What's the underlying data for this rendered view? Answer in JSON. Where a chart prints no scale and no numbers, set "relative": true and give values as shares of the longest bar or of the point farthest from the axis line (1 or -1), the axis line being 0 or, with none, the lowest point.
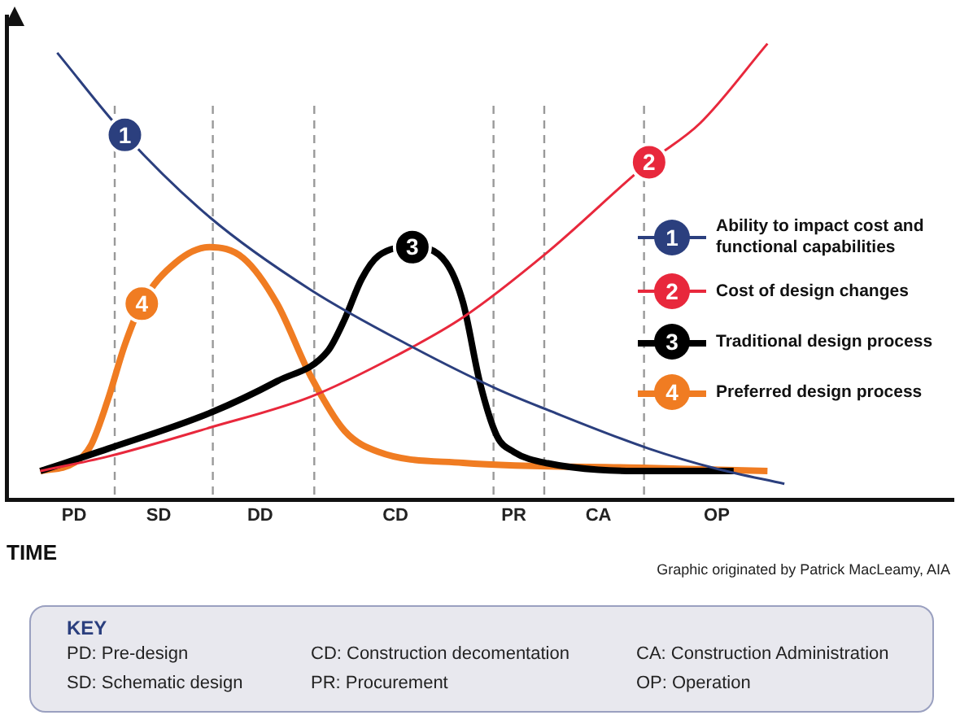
{
  "chart_data": {
    "type": "line",
    "relative": true,
    "xlabel": "TIME",
    "categories": [
      null,
      null,
      null,
      null,
      "PD",
      null,
      null,
      null,
      null,
      "SD",
      null,
      null,
      null,
      null,
      null,
      "DD",
      null,
      null,
      null,
      null,
      null,
      null,
      null,
      "CD",
      null,
      null,
      null,
      null,
      null,
      null,
      "PR",
      null,
      null,
      null,
      null,
      "CA",
      null,
      null,
      null,
      null,
      null,
      null,
      "OP",
      null,
      null,
      null,
      null,
      null,
      null,
      null,
      null,
      null,
      null,
      null,
      null,
      null,
      null
    ],
    "series": [
      {
        "name": "Ability to impact cost and functional capabilities",
        "color": "#2b3f7e",
        "values": [
          null,
          null,
          null,
          0.98,
          null,
          null,
          null,
          0.8,
          null,
          null,
          null,
          null,
          0.62,
          null,
          null,
          null,
          null,
          null,
          0.46,
          null,
          null,
          null,
          null,
          null,
          0.335,
          null,
          null,
          null,
          null,
          0.243,
          null,
          null,
          0.197,
          null,
          null,
          null,
          null,
          null,
          0.112,
          null,
          null,
          null,
          0.068,
          null,
          null,
          null,
          0.035,
          null,
          null,
          null,
          null,
          null,
          null,
          null,
          null,
          null,
          null
        ]
      },
      {
        "name": "Cost of design changes",
        "color": "#e8283c",
        "values": [
          null,
          null,
          0.063,
          null,
          null,
          null,
          0.095,
          null,
          null,
          null,
          null,
          null,
          0.158,
          null,
          null,
          null,
          null,
          null,
          0.226,
          null,
          null,
          null,
          null,
          0.315,
          null,
          null,
          null,
          0.4,
          null,
          null,
          null,
          null,
          0.543,
          null,
          null,
          null,
          null,
          null,
          0.74,
          null,
          null,
          0.825,
          null,
          null,
          null,
          1.0,
          null,
          null,
          null,
          null,
          null,
          null,
          null,
          null,
          null,
          null,
          null
        ]
      },
      {
        "name": "Traditional design process",
        "color": "#000000",
        "values": [
          null,
          null,
          0.063,
          null,
          null,
          null,
          0.112,
          null,
          null,
          null,
          null,
          null,
          0.19,
          null,
          null,
          null,
          0.26,
          null,
          null,
          0.326,
          0.396,
          0.484,
          0.535,
          null,
          0.554,
          null,
          0.52,
          0.432,
          0.256,
          0.14,
          0.105,
          null,
          0.08,
          null,
          null,
          null,
          null,
          null,
          0.063,
          null,
          null,
          null,
          null,
          0.063,
          null,
          null,
          null,
          null,
          null,
          null,
          null,
          null,
          null,
          null,
          null,
          null,
          null
        ]
      },
      {
        "name": "Preferred design process",
        "color": "#f07c22",
        "values": [
          null,
          null,
          0.063,
          null,
          0.081,
          0.12,
          0.22,
          0.34,
          0.43,
          null,
          0.52,
          null,
          0.554,
          null,
          0.53,
          null,
          0.43,
          null,
          0.27,
          null,
          0.151,
          null,
          0.105,
          null,
          null,
          null,
          null,
          0.081,
          null,
          null,
          null,
          null,
          null,
          null,
          null,
          null,
          null,
          null,
          0.07,
          null,
          null,
          null,
          null,
          null,
          null,
          0.063,
          null,
          null,
          null,
          null,
          null,
          null,
          null,
          null,
          null,
          null,
          null
        ]
      }
    ],
    "annotations": [
      "1",
      "2",
      "3",
      "4",
      "Graphic originated by Patrick MacLeamy, AIA",
      "KEY",
      "PD: Pre-design",
      "SD: Schematic design",
      "CD: Construction decomentation",
      "PR: Procurement",
      "CA: Construction Administration",
      "OP: Operation"
    ],
    "legend": "right",
    "marker": "none",
    "line_style": "solid",
    "grid": false
  }
}
